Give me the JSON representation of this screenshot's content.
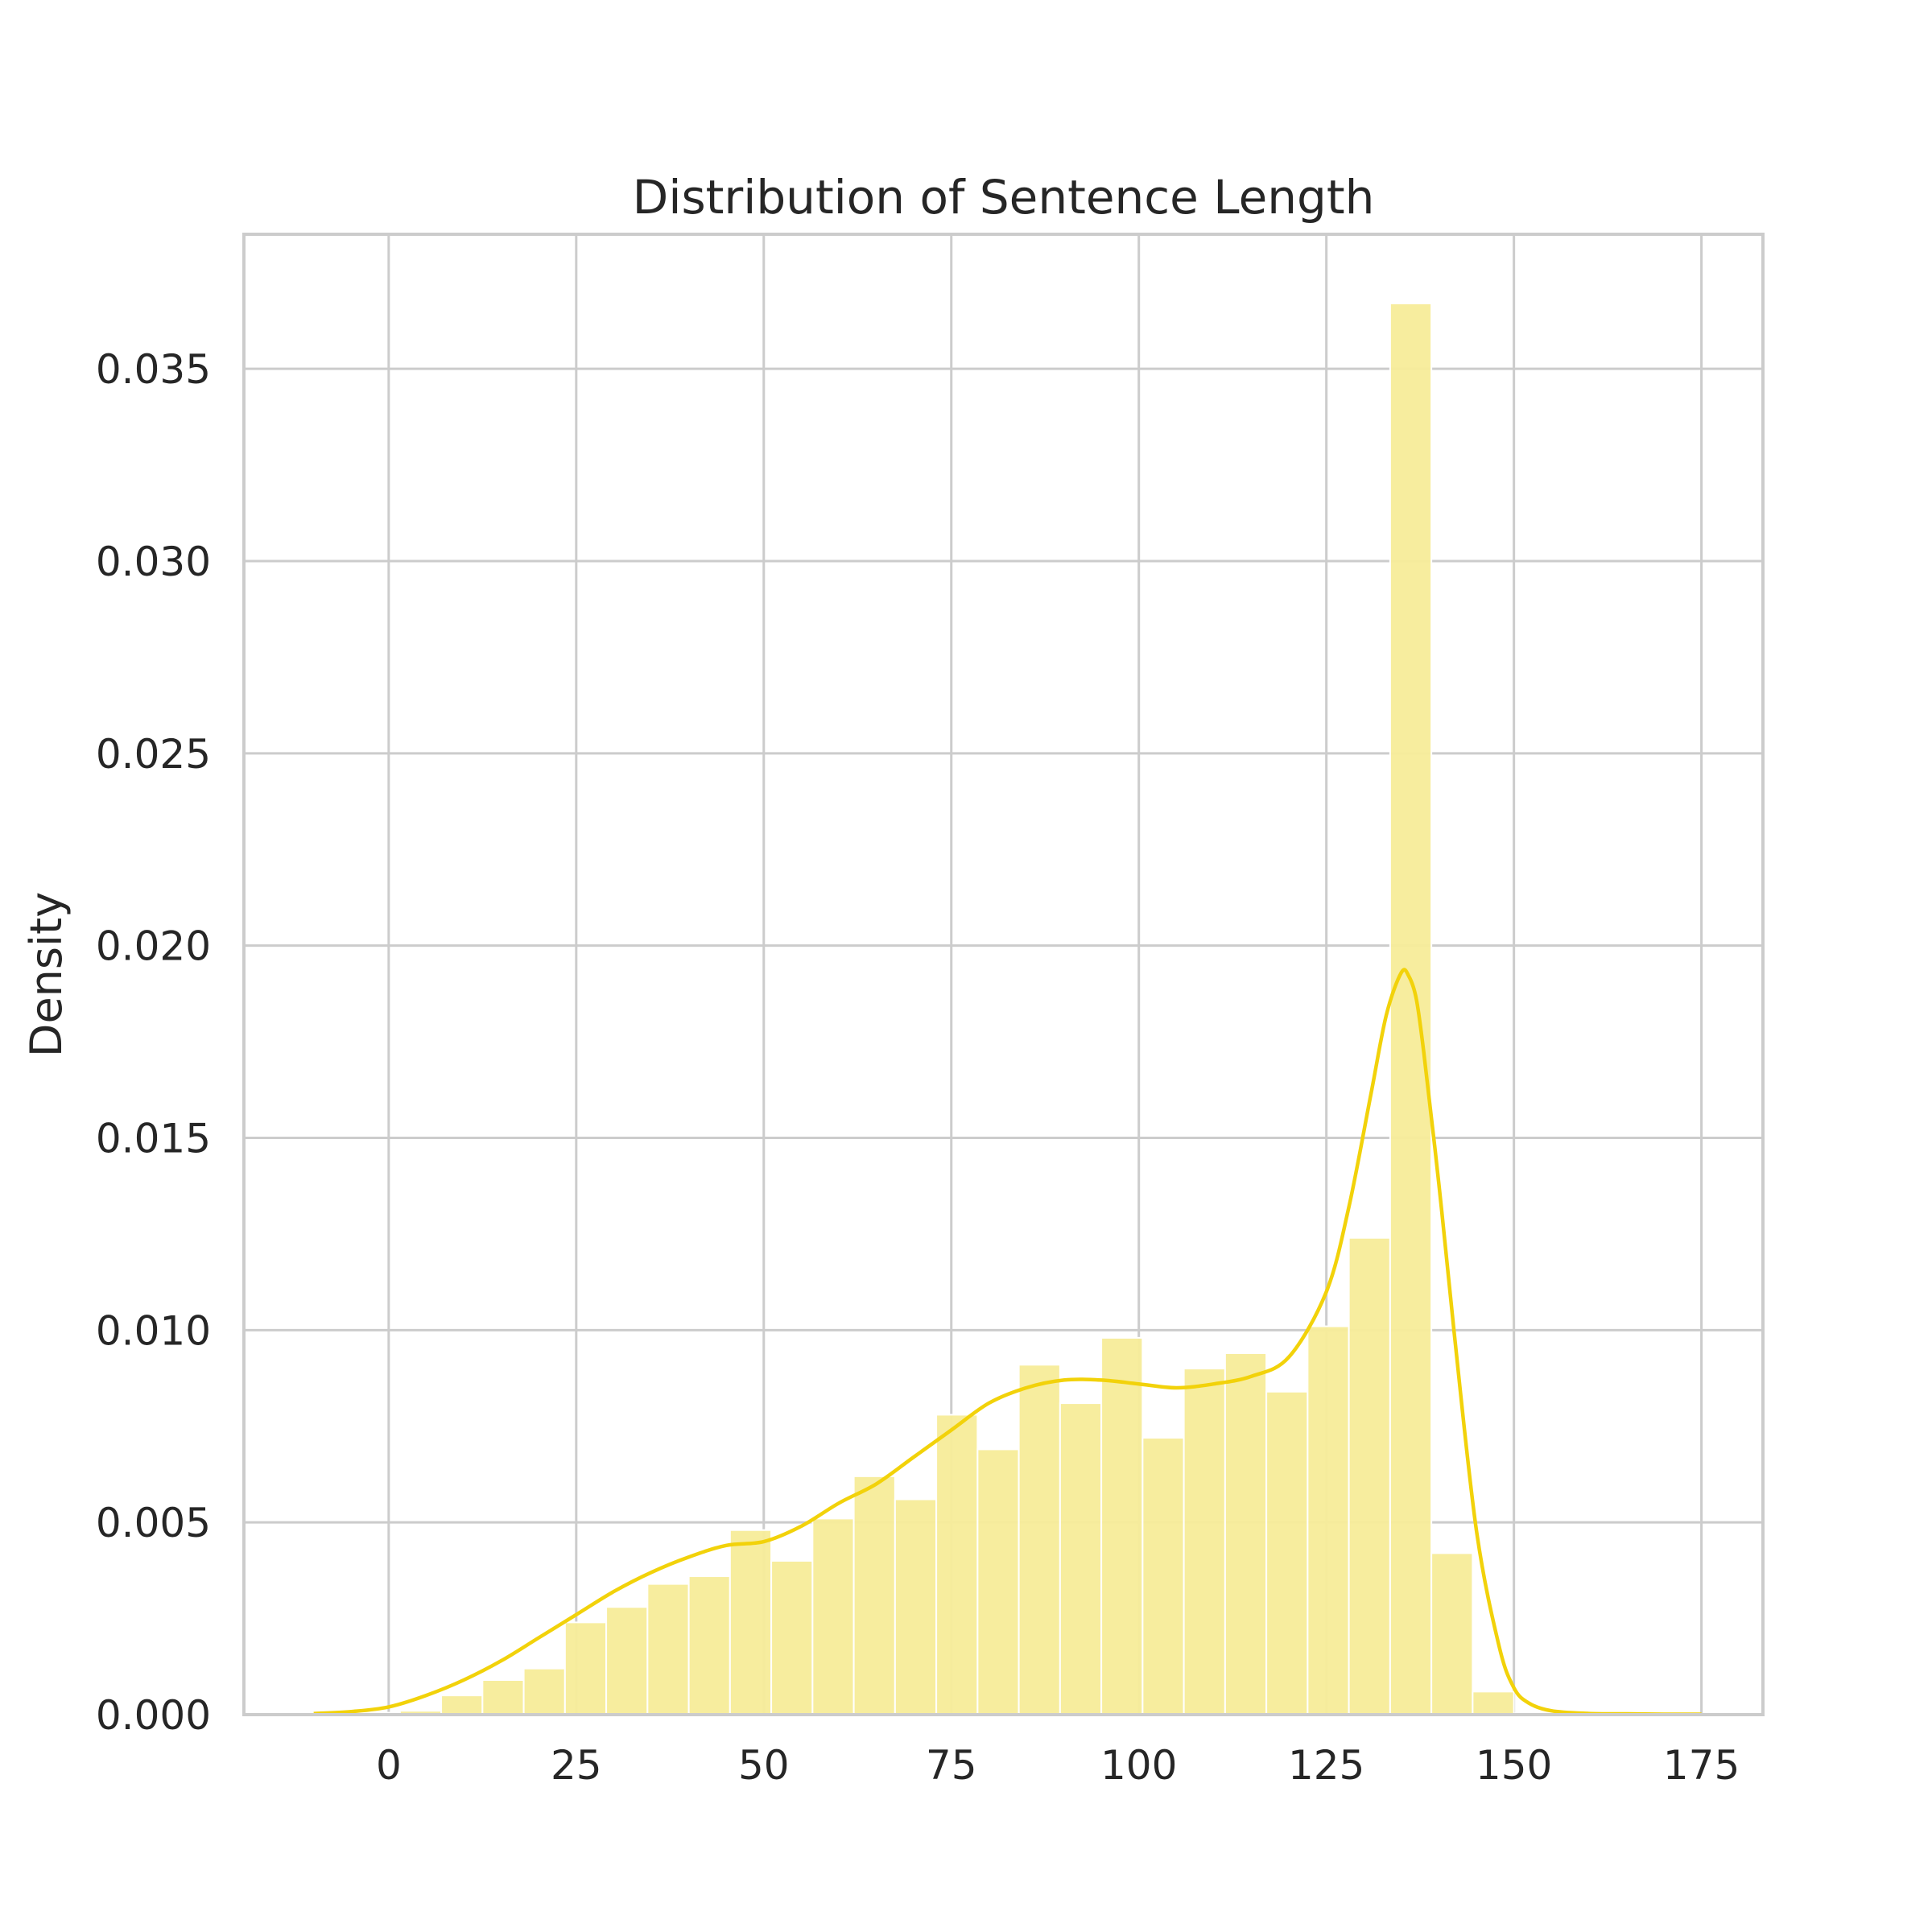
{
  "chart_data": {
    "type": "bar",
    "title": "Distribution of Sentence Length",
    "xlabel": "",
    "ylabel": "Density",
    "xlim": [
      -19.3,
      183.2
    ],
    "ylim": [
      0,
      0.0385
    ],
    "x_ticks": [
      0,
      25,
      50,
      75,
      100,
      125,
      150,
      175
    ],
    "x_tick_labels": [
      "0",
      "25",
      "50",
      "75",
      "100",
      "125",
      "150",
      "175"
    ],
    "y_ticks": [
      0.0,
      0.005,
      0.01,
      0.015,
      0.02,
      0.025,
      0.03,
      0.035
    ],
    "y_tick_labels": [
      "0.000",
      "0.005",
      "0.010",
      "0.015",
      "0.020",
      "0.025",
      "0.030",
      "0.035"
    ],
    "grid": true,
    "colors": {
      "bars": "#f7ec99",
      "kde": "#f2d20a",
      "grid": "#cccccc",
      "text": "#262626"
    },
    "series": [
      {
        "kind": "histogram",
        "bin_edges": [
          -9.5,
          -4,
          1.5,
          7,
          12.5,
          18,
          23.5,
          29,
          34.5,
          40,
          45.5,
          51,
          56.5,
          62,
          67.5,
          73,
          78.5,
          84,
          89.5,
          95,
          100.5,
          106,
          111.5,
          117,
          122.5,
          128,
          133.5,
          139,
          144.5,
          150,
          155.5,
          161,
          166.5,
          172
        ],
        "values": [
          5e-05,
          5e-05,
          0.0001,
          0.0005,
          0.0009,
          0.0012,
          0.0024,
          0.0028,
          0.0034,
          0.0036,
          0.0048,
          0.004,
          0.0051,
          0.0062,
          0.0056,
          0.0078,
          0.0069,
          0.0091,
          0.0081,
          0.0098,
          0.0072,
          0.009,
          0.0094,
          0.0084,
          0.0101,
          0.0124,
          0.0367,
          0.0042,
          0.0006,
          3e-05,
          2e-05,
          2e-05,
          3e-05
        ]
      },
      {
        "kind": "kde",
        "x": [
          -10,
          -5,
          0,
          5,
          10,
          15,
          20,
          25,
          30,
          35,
          40,
          45,
          50,
          55,
          60,
          65,
          70,
          75,
          80,
          85,
          90,
          95,
          100,
          105,
          110,
          115,
          120,
          125,
          128,
          131,
          133,
          135,
          136,
          137,
          138,
          140,
          142,
          145,
          148,
          150,
          152,
          155,
          160,
          165,
          170,
          175
        ],
        "y": [
          3e-05,
          8e-05,
          0.0002,
          0.0005,
          0.0009,
          0.0014,
          0.002,
          0.0026,
          0.0032,
          0.0037,
          0.0041,
          0.0044,
          0.0045,
          0.0049,
          0.0055,
          0.006,
          0.0067,
          0.0074,
          0.0081,
          0.0085,
          0.0087,
          0.0087,
          0.0086,
          0.0085,
          0.0086,
          0.0088,
          0.0093,
          0.011,
          0.0132,
          0.0162,
          0.0182,
          0.0193,
          0.0192,
          0.0186,
          0.0172,
          0.0138,
          0.01,
          0.0048,
          0.0018,
          0.0007,
          0.0003,
          0.0001,
          3e-05,
          2e-05,
          1e-05,
          1e-05
        ]
      }
    ]
  }
}
